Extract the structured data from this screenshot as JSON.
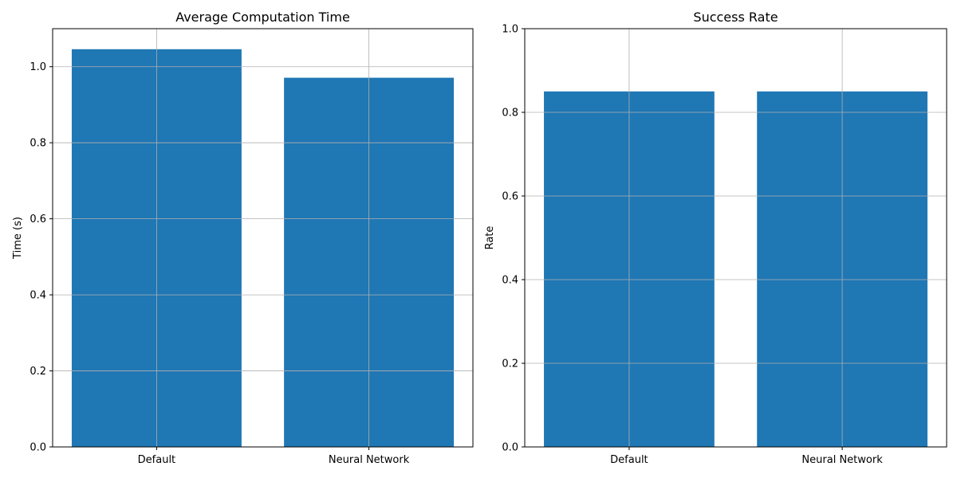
{
  "chart_data": [
    {
      "type": "bar",
      "title": "Average Computation Time",
      "xlabel": "",
      "ylabel": "Time (s)",
      "categories": [
        "Default",
        "Neural Network"
      ],
      "values": [
        1.046,
        0.971
      ],
      "ylim": [
        0,
        1.1
      ],
      "yticks": [
        0.0,
        0.2,
        0.4,
        0.6,
        0.8,
        1.0
      ],
      "ytick_labels": [
        "0.0",
        "0.2",
        "0.4",
        "0.6",
        "0.8",
        "1.0"
      ],
      "grid": true,
      "bar_color": "#1f77b4"
    },
    {
      "type": "bar",
      "title": "Success Rate",
      "xlabel": "",
      "ylabel": "Rate",
      "categories": [
        "Default",
        "Neural Network"
      ],
      "values": [
        0.85,
        0.85
      ],
      "ylim": [
        0,
        1.0
      ],
      "yticks": [
        0.0,
        0.2,
        0.4,
        0.6,
        0.8,
        1.0
      ],
      "ytick_labels": [
        "0.0",
        "0.2",
        "0.4",
        "0.6",
        "0.8",
        "1.0"
      ],
      "grid": true,
      "bar_color": "#1f77b4"
    }
  ]
}
